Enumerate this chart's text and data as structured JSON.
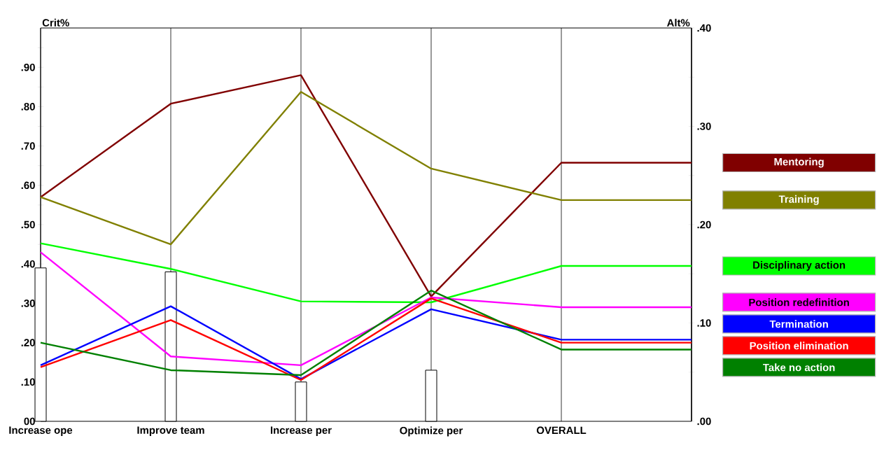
{
  "chart_data": {
    "type": "line",
    "categories": [
      "Increase ope",
      "Improve team",
      "Increase per",
      "Optimize per",
      "OVERALL",
      null
    ],
    "ylabel": "Crit%",
    "y2label": "Alt%",
    "series": [
      {
        "type": "bar",
        "axis": "y",
        "color": "#ffffff",
        "values": [
          0.39,
          0.38,
          0.1,
          0.13,
          null,
          null
        ]
      },
      {
        "name": "Mentoring",
        "axis": "y2",
        "color": "#800000",
        "values": [
          0.228,
          0.323,
          0.352,
          0.127,
          0.263,
          0.263
        ]
      },
      {
        "name": "Training",
        "axis": "y2",
        "color": "#808000",
        "values": [
          0.228,
          0.18,
          0.335,
          0.257,
          0.225,
          0.225
        ]
      },
      {
        "name": "Disciplinary action",
        "axis": "y2",
        "color": "#00ff00",
        "values": [
          0.181,
          0.155,
          0.122,
          0.121,
          0.158,
          0.158
        ]
      },
      {
        "name": "Position redefinition",
        "axis": "y2",
        "color": "#ff00ff",
        "values": [
          0.172,
          0.066,
          0.057,
          0.126,
          0.116,
          0.116
        ]
      },
      {
        "name": "Termination",
        "axis": "y2",
        "color": "#0000ff",
        "values": [
          0.057,
          0.117,
          0.043,
          0.114,
          0.083,
          0.083
        ]
      },
      {
        "name": "Position elimination",
        "axis": "y2",
        "color": "#ff0000",
        "values": [
          0.055,
          0.103,
          0.042,
          0.125,
          0.08,
          0.08
        ]
      },
      {
        "name": "Take no action",
        "axis": "y2",
        "color": "#008000",
        "values": [
          0.08,
          0.052,
          0.047,
          0.133,
          0.073,
          0.073
        ]
      }
    ],
    "ylim": [
      0,
      1
    ],
    "yticks": [
      {
        "value": 0,
        "label": "00"
      },
      {
        "value": 0.05,
        "label": null
      },
      {
        "value": 0.1,
        "label": ".10"
      },
      {
        "value": 0.15,
        "label": null
      },
      {
        "value": 0.2,
        "label": ".20"
      },
      {
        "value": 0.25,
        "label": null
      },
      {
        "value": 0.3,
        "label": ".30"
      },
      {
        "value": 0.35,
        "label": null
      },
      {
        "value": 0.4,
        "label": ".40"
      },
      {
        "value": 0.45,
        "label": null
      },
      {
        "value": 0.5,
        "label": ".50"
      },
      {
        "value": 0.55,
        "label": null
      },
      {
        "value": 0.6,
        "label": ".60"
      },
      {
        "value": 0.65,
        "label": null
      },
      {
        "value": 0.7,
        "label": ".70"
      },
      {
        "value": 0.75,
        "label": null
      },
      {
        "value": 0.8,
        "label": ".80"
      },
      {
        "value": 0.85,
        "label": null
      },
      {
        "value": 0.9,
        "label": ".90"
      },
      {
        "value": 0.95,
        "label": null
      }
    ],
    "y2lim": [
      0,
      0.4
    ],
    "y2ticks": [
      {
        "value": 0,
        "label": ".00"
      },
      {
        "value": 0.05,
        "label": null
      },
      {
        "value": 0.1,
        "label": ".10"
      },
      {
        "value": 0.15,
        "label": null
      },
      {
        "value": 0.2,
        "label": ".20"
      },
      {
        "value": 0.25,
        "label": null
      },
      {
        "value": 0.3,
        "label": ".30"
      },
      {
        "value": 0.35,
        "label": null
      },
      {
        "value": 0.4,
        "label": ".40"
      }
    ],
    "grid": "x",
    "legend": "right",
    "marker": "none",
    "line_style": "solid"
  }
}
